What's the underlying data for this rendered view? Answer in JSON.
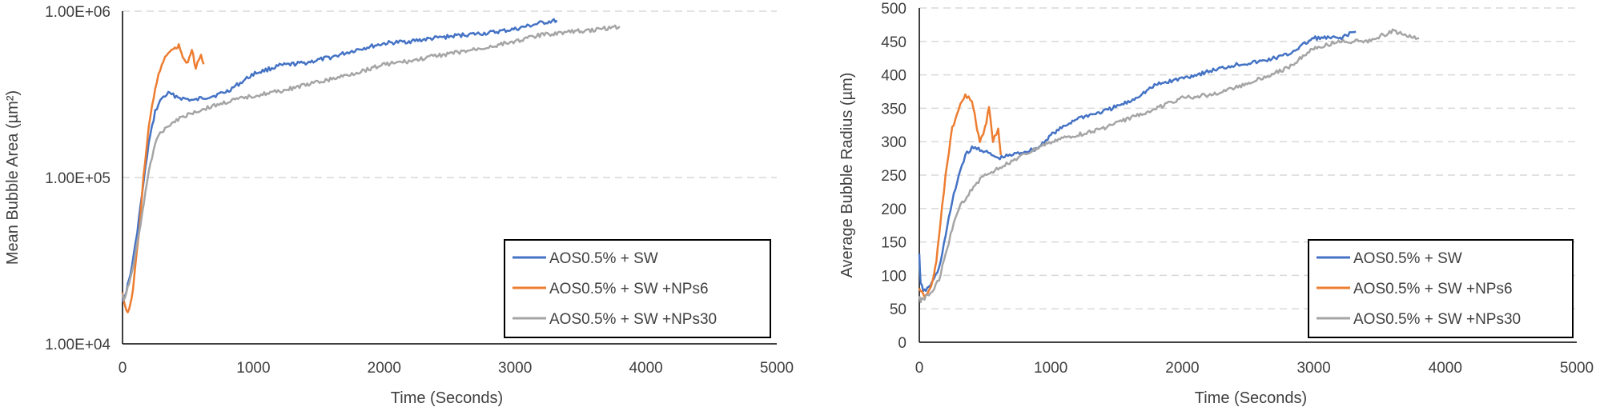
{
  "chart_data": [
    {
      "type": "line",
      "title": "",
      "xlabel": "Time (Seconds)",
      "ylabel": "Mean Bubble Area (µm²)",
      "y_scale": "log",
      "xlim": [
        0,
        5000
      ],
      "ylim": [
        10000,
        1000000
      ],
      "x_ticks": [
        0,
        1000,
        2000,
        3000,
        4000,
        5000
      ],
      "y_ticks": [
        10000,
        100000,
        1000000
      ],
      "x_tick_labels": [
        "0",
        "1000",
        "2000",
        "3000",
        "4000",
        "5000"
      ],
      "y_tick_labels": [
        "1.00E+04",
        "1.00E+05",
        "1.00E+06"
      ],
      "grid": "horizontal dashed",
      "legend_position": "bottom-right",
      "series": [
        {
          "name": "AOS0.5% + SW",
          "color": "#4472C4",
          "x": [
            0,
            10,
            30,
            60,
            100,
            150,
            200,
            250,
            300,
            350,
            400,
            450,
            500,
            550,
            600,
            700,
            800,
            900,
            1000,
            1200,
            1400,
            1600,
            1800,
            2000,
            2200,
            2400,
            2600,
            2800,
            3000,
            3200,
            3320
          ],
          "y": [
            19000,
            18000,
            21000,
            26000,
            40000,
            80000,
            160000,
            250000,
            300000,
            320000,
            310000,
            300000,
            295000,
            290000,
            300000,
            310000,
            330000,
            370000,
            420000,
            470000,
            490000,
            530000,
            590000,
            640000,
            660000,
            690000,
            720000,
            740000,
            780000,
            850000,
            880000
          ]
        },
        {
          "name": "AOS0.5% + SW +NPs6",
          "color": "#ED7D31",
          "x": [
            0,
            20,
            40,
            60,
            80,
            100,
            130,
            160,
            200,
            250,
            300,
            350,
            400,
            430,
            460,
            500,
            530,
            560,
            600,
            620
          ],
          "y": [
            20000,
            17000,
            15500,
            17000,
            21000,
            30000,
            50000,
            100000,
            200000,
            350000,
            480000,
            560000,
            600000,
            620000,
            520000,
            480000,
            600000,
            450000,
            560000,
            480000
          ]
        },
        {
          "name": "AOS0.5% + SW +NPs30",
          "color": "#A5A5A5",
          "x": [
            0,
            10,
            30,
            60,
            100,
            150,
            200,
            250,
            300,
            400,
            500,
            600,
            700,
            800,
            1000,
            1200,
            1400,
            1600,
            1800,
            2000,
            2200,
            2400,
            2600,
            2800,
            3000,
            3200,
            3400,
            3600,
            3800
          ],
          "y": [
            20000,
            18000,
            20000,
            25000,
            35000,
            60000,
            110000,
            160000,
            190000,
            220000,
            240000,
            255000,
            270000,
            285000,
            310000,
            330000,
            360000,
            390000,
            430000,
            480000,
            500000,
            540000,
            570000,
            610000,
            660000,
            720000,
            750000,
            770000,
            810000
          ]
        }
      ]
    },
    {
      "type": "line",
      "title": "",
      "xlabel": "Time (Seconds)",
      "ylabel": "Average Bubble Radius (µm)",
      "y_scale": "linear",
      "xlim": [
        0,
        5000
      ],
      "ylim": [
        0,
        500
      ],
      "x_ticks": [
        0,
        1000,
        2000,
        3000,
        4000,
        5000
      ],
      "y_ticks": [
        0,
        50,
        100,
        150,
        200,
        250,
        300,
        350,
        400,
        450,
        500
      ],
      "x_tick_labels": [
        "0",
        "1000",
        "2000",
        "3000",
        "4000",
        "5000"
      ],
      "y_tick_labels": [
        "0",
        "50",
        "100",
        "150",
        "200",
        "250",
        "300",
        "350",
        "400",
        "450",
        "500"
      ],
      "grid": "horizontal dashed",
      "legend_position": "bottom-right",
      "series": [
        {
          "name": "AOS0.5% + SW",
          "color": "#4472C4",
          "x": [
            0,
            10,
            30,
            60,
            100,
            150,
            200,
            250,
            300,
            350,
            400,
            450,
            500,
            550,
            600,
            700,
            800,
            900,
            1000,
            1200,
            1400,
            1600,
            1800,
            2000,
            2200,
            2400,
            2600,
            2800,
            3000,
            3200,
            3320
          ],
          "y": [
            130,
            90,
            75,
            80,
            90,
            110,
            160,
            210,
            250,
            280,
            290,
            290,
            285,
            280,
            275,
            280,
            285,
            290,
            310,
            335,
            345,
            360,
            385,
            395,
            405,
            415,
            420,
            430,
            455,
            455,
            465
          ]
        },
        {
          "name": "AOS0.5% + SW +NPs6",
          "color": "#ED7D31",
          "x": [
            0,
            20,
            40,
            60,
            80,
            100,
            130,
            160,
            200,
            250,
            300,
            350,
            400,
            430,
            460,
            500,
            530,
            560,
            600,
            620
          ],
          "y": [
            80,
            75,
            70,
            72,
            78,
            90,
            120,
            180,
            250,
            320,
            350,
            370,
            360,
            330,
            300,
            320,
            350,
            300,
            320,
            280
          ]
        },
        {
          "name": "AOS0.5% + SW +NPs30",
          "color": "#A5A5A5",
          "x": [
            0,
            10,
            30,
            60,
            100,
            150,
            200,
            250,
            300,
            400,
            500,
            600,
            700,
            800,
            1000,
            1200,
            1400,
            1600,
            1800,
            2000,
            2200,
            2400,
            2600,
            2800,
            3000,
            3200,
            3400,
            3600,
            3800
          ],
          "y": [
            70,
            62,
            65,
            70,
            75,
            95,
            130,
            170,
            200,
            230,
            250,
            260,
            270,
            280,
            300,
            310,
            320,
            335,
            350,
            365,
            370,
            380,
            395,
            410,
            440,
            450,
            450,
            465,
            455
          ]
        }
      ]
    }
  ]
}
